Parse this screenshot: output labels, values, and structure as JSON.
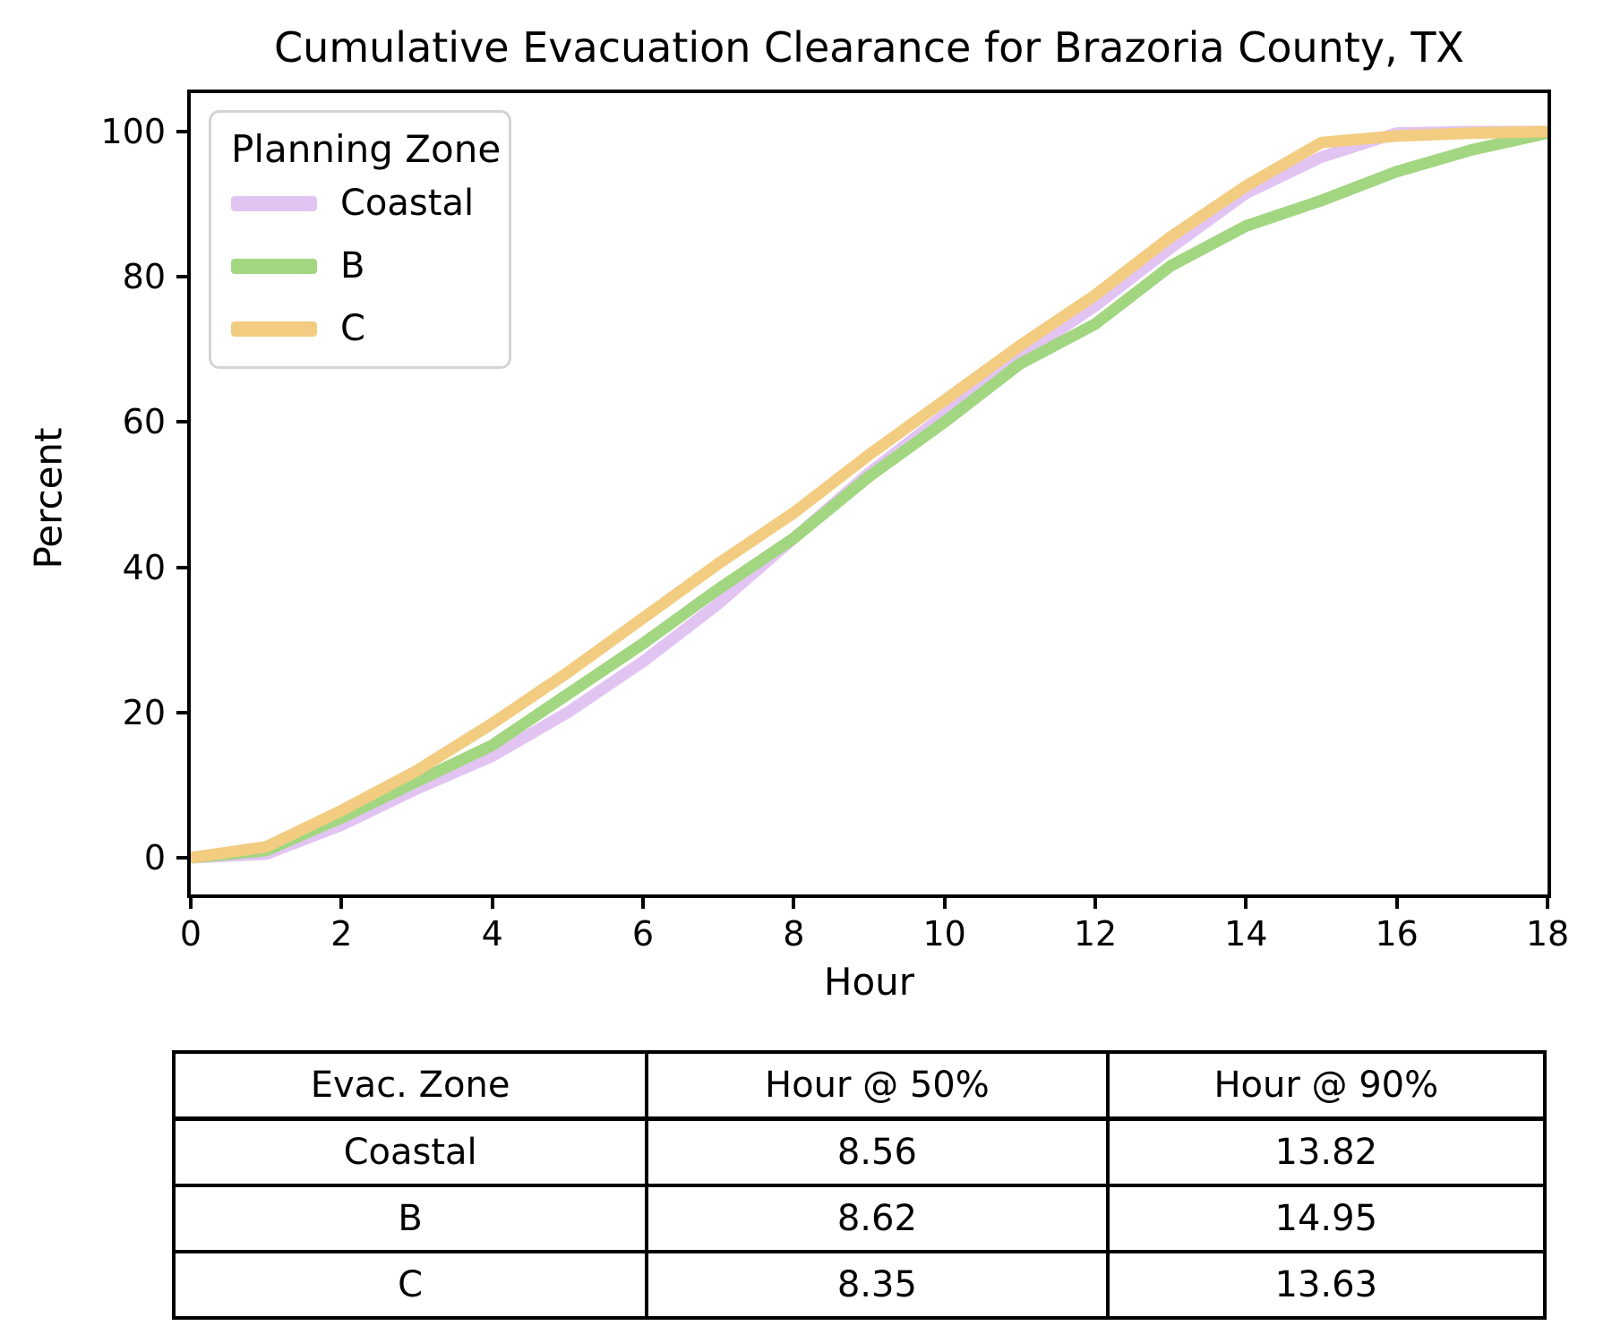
{
  "title": "Cumulative Evacuation Clearance for Brazoria County, TX",
  "chart_data": {
    "type": "line",
    "title": "Cumulative Evacuation Clearance for Brazoria County, TX",
    "xlabel": "Hour",
    "ylabel": "Percent",
    "xlim": [
      0,
      18
    ],
    "ylim": [
      0,
      100
    ],
    "xticks": [
      0,
      2,
      4,
      6,
      8,
      10,
      12,
      14,
      16,
      18
    ],
    "yticks": [
      0,
      20,
      40,
      60,
      80,
      100
    ],
    "grid": false,
    "legend": {
      "title": "Planning Zone",
      "position": "upper left"
    },
    "x": [
      0,
      1,
      2,
      3,
      4,
      5,
      6,
      7,
      8,
      9,
      10,
      11,
      12,
      13,
      14,
      15,
      16,
      17,
      18
    ],
    "series": [
      {
        "name": "Coastal",
        "color": "#e2c4f3",
        "values": [
          0,
          0.5,
          4.5,
          9.5,
          14,
          20,
          27,
          35,
          44,
          53,
          61,
          69,
          76,
          84,
          91.5,
          96.5,
          99.8,
          100,
          100
        ]
      },
      {
        "name": "B",
        "color": "#a2d681",
        "values": [
          0,
          1,
          5.5,
          10.5,
          15.5,
          22.5,
          29.5,
          37,
          44,
          52.5,
          60,
          68,
          73.5,
          81.5,
          87,
          90.5,
          94.5,
          97.5,
          99.8
        ]
      },
      {
        "name": "C",
        "color": "#f2cc80",
        "values": [
          0,
          1.5,
          6.5,
          12,
          18.5,
          25.5,
          33,
          40.5,
          47.5,
          55.5,
          63,
          70.5,
          77.5,
          85.5,
          92.5,
          98.5,
          99.4,
          99.8,
          100
        ]
      }
    ]
  },
  "table": {
    "headers": [
      "Evac. Zone",
      "Hour @ 50%",
      "Hour @ 90%"
    ],
    "rows": [
      [
        "Coastal",
        "8.56",
        "13.82"
      ],
      [
        "B",
        "8.62",
        "14.95"
      ],
      [
        "C",
        "8.35",
        "13.63"
      ]
    ]
  }
}
